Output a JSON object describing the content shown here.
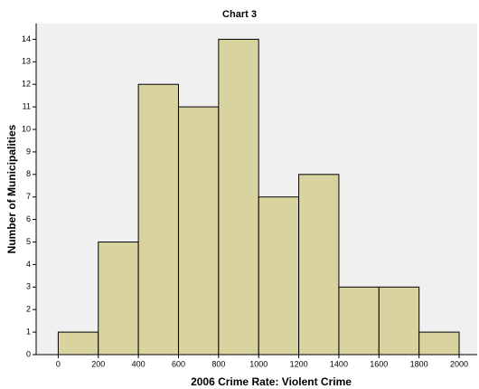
{
  "chart_data": {
    "type": "histogram",
    "title": "Chart 3",
    "x_label": "2006 Crime Rate: Violent Crime",
    "y_label": "Number of Municipalities",
    "bins": [
      0,
      200,
      400,
      600,
      800,
      1000,
      1200,
      1400,
      1600,
      1800,
      2000
    ],
    "values": [
      1,
      5,
      12,
      11,
      14,
      7,
      8,
      3,
      3,
      1
    ],
    "color": "#d9d3a0",
    "edge_color": "#000000",
    "background": "#f0f0f0",
    "xlim": [
      -110,
      2090
    ],
    "ylim": [
      0,
      14.7
    ],
    "xticks": [
      0,
      200,
      400,
      600,
      800,
      1000,
      1200,
      1400,
      1600,
      1800,
      2000
    ],
    "yticks": [
      0,
      1,
      2,
      3,
      4,
      5,
      6,
      7,
      8,
      9,
      10,
      11,
      12,
      13,
      14
    ]
  }
}
